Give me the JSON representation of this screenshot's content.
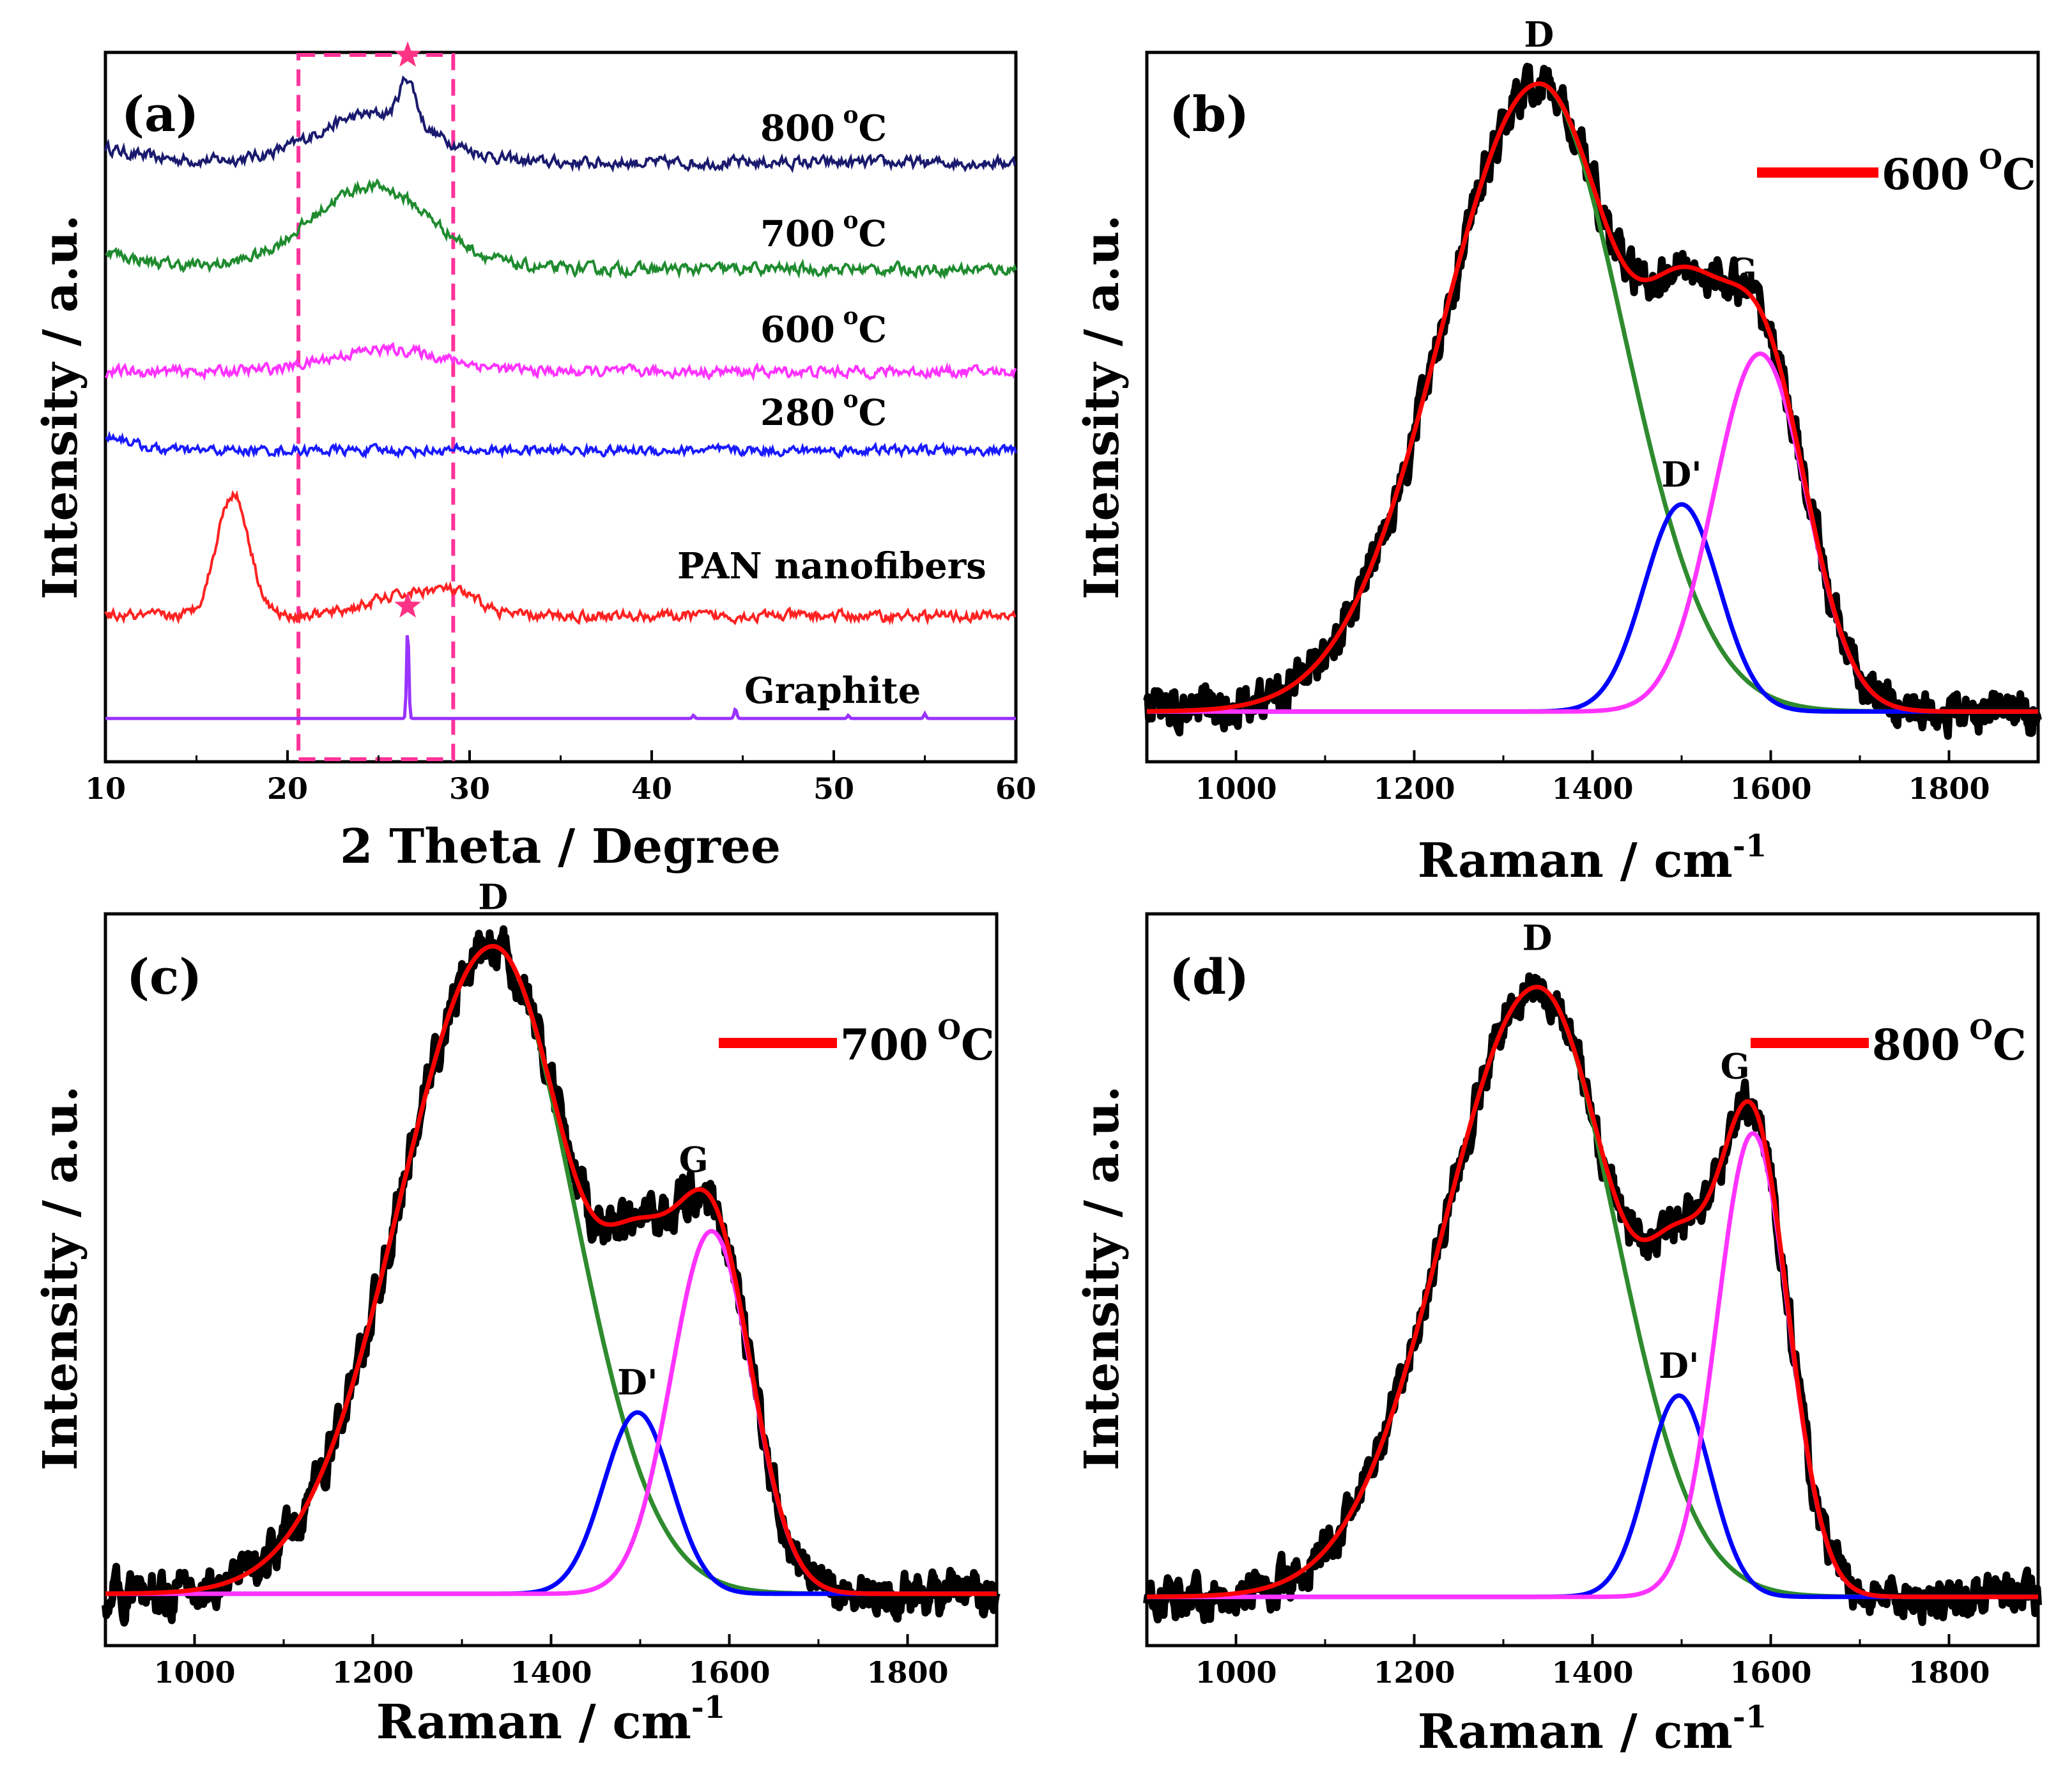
{
  "chart_data": [
    {
      "panel": "(a)",
      "type": "line",
      "xlabel": "2 Theta / Degree",
      "ylabel": "Intensity / a.u.",
      "xlim": [
        10,
        60
      ],
      "xticks": [
        "10",
        "20",
        "30",
        "40",
        "50",
        "60"
      ],
      "highlight_range": [
        20.6,
        29.1
      ],
      "series": [
        {
          "name": "800 °C",
          "label_main": "800",
          "color": "#1a1a6e",
          "offset": 7.6,
          "noise": 0.12,
          "peaks": [
            {
              "center": 24.8,
              "width": 3.2,
              "height": 0.62
            },
            {
              "center": 26.6,
              "width": 0.45,
              "height": 0.55
            }
          ]
        },
        {
          "name": "700 °C",
          "label_main": "700",
          "color": "#1f8b2f",
          "offset": 6.25,
          "noise": 0.12,
          "peaks": [
            {
              "center": 24.6,
              "width": 3.3,
              "height": 1.05
            }
          ]
        },
        {
          "name": "600 °C",
          "label_main": "600",
          "color": "#ff33ff",
          "offset": 4.95,
          "noise": 0.11,
          "peaks": [
            {
              "center": 25.5,
              "width": 3.2,
              "height": 0.28
            }
          ]
        },
        {
          "name": "280 °C",
          "label_main": "280",
          "color": "#1a1aff",
          "offset": 3.95,
          "noise": 0.1,
          "peaks": [
            {
              "center": 10.2,
              "width": 1.2,
              "height": 0.18
            }
          ]
        },
        {
          "name": "PAN nanofibers",
          "label_main": "PAN nanofibers",
          "color": "#ff2222",
          "offset": 1.85,
          "noise": 0.11,
          "peaks": [
            {
              "center": 17.0,
              "width": 0.9,
              "height": 1.55
            },
            {
              "center": 26.5,
              "width": 2.2,
              "height": 0.25
            },
            {
              "center": 29.2,
              "width": 1.4,
              "height": 0.2
            }
          ]
        },
        {
          "name": "Graphite",
          "label_main": "Graphite",
          "color": "#9933ff",
          "offset": 0.55,
          "noise": 0.0,
          "peaks": [
            {
              "center": 26.6,
              "width": 0.06,
              "height": 1.18
            },
            {
              "center": 44.6,
              "width": 0.07,
              "height": 0.12
            },
            {
              "center": 42.3,
              "width": 0.06,
              "height": 0.04
            },
            {
              "center": 50.8,
              "width": 0.06,
              "height": 0.04
            },
            {
              "center": 55.0,
              "width": 0.06,
              "height": 0.06
            }
          ]
        }
      ],
      "star_markers": [
        {
          "x": 26.6,
          "series": "800 °C"
        },
        {
          "x": 26.6,
          "series": "Graphite"
        }
      ],
      "star_color": "#ff3385"
    },
    {
      "panel": "(b)",
      "type": "line",
      "temperature": "600",
      "legend": "600 °C",
      "xlabel": "Raman / cm-1",
      "ylabel": "Intensity / a.u.",
      "xlim": [
        900,
        1900
      ],
      "ylim": [
        -0.08,
        1.05
      ],
      "xticks": [
        "1000",
        "1200",
        "1400",
        "1600",
        "1800"
      ],
      "bands": [
        {
          "name": "D",
          "center": 1340,
          "left_width": 110,
          "right_width": 95,
          "height": 1.0,
          "color": "#2e8b2e"
        },
        {
          "name": "D'",
          "center": 1500,
          "width": 42,
          "height": 0.33,
          "color": "#0000ff"
        },
        {
          "name": "G",
          "center": 1588,
          "width": 52,
          "height": 0.57,
          "color": "#ff33ff"
        }
      ],
      "peak_labels": [
        "D",
        "D'",
        "G"
      ]
    },
    {
      "panel": "(c)",
      "type": "line",
      "temperature": "700",
      "legend": "700 °C",
      "xlabel": "Raman / cm-1",
      "ylabel": "Intensity / a.u.",
      "xlim": [
        900,
        1900
      ],
      "ylim": [
        -0.08,
        1.05
      ],
      "xticks": [
        "1000",
        "1200",
        "1400",
        "1600",
        "1800"
      ],
      "bands": [
        {
          "name": "D",
          "center": 1335,
          "left_width": 105,
          "right_width": 90,
          "height": 1.0,
          "color": "#2e8b2e"
        },
        {
          "name": "D'",
          "center": 1497,
          "width": 38,
          "height": 0.28,
          "color": "#0000ff"
        },
        {
          "name": "G",
          "center": 1580,
          "width": 45,
          "height": 0.56,
          "color": "#ff33ff"
        }
      ],
      "peak_labels": [
        "D",
        "D'",
        "G"
      ]
    },
    {
      "panel": "(d)",
      "type": "line",
      "temperature": "800",
      "legend": "800 °C",
      "xlabel": "Raman / cm-1",
      "ylabel": "Intensity / a.u.",
      "xlim": [
        900,
        1900
      ],
      "ylim": [
        -0.08,
        1.12
      ],
      "xticks": [
        "1000",
        "1200",
        "1400",
        "1600",
        "1800"
      ],
      "bands": [
        {
          "name": "D",
          "center": 1338,
          "left_width": 105,
          "right_width": 88,
          "height": 1.0,
          "color": "#2e8b2e"
        },
        {
          "name": "D'",
          "center": 1497,
          "width": 36,
          "height": 0.33,
          "color": "#0000ff"
        },
        {
          "name": "G",
          "center": 1580,
          "width": 40,
          "height": 0.76,
          "color": "#ff33ff"
        }
      ],
      "peak_labels": [
        "D",
        "D'",
        "G"
      ]
    }
  ]
}
